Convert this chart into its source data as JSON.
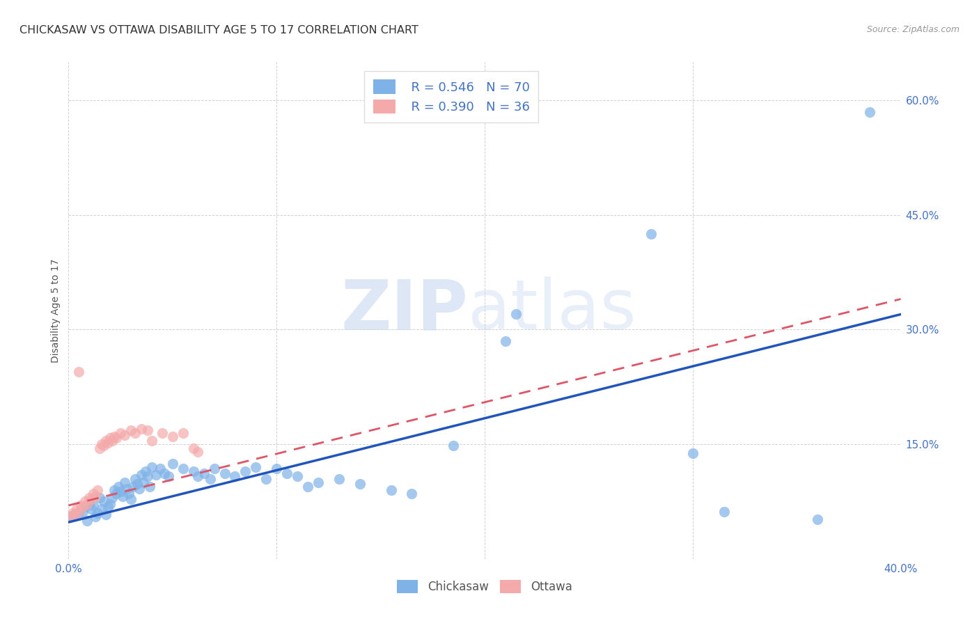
{
  "title": "CHICKASAW VS OTTAWA DISABILITY AGE 5 TO 17 CORRELATION CHART",
  "source": "Source: ZipAtlas.com",
  "ylabel": "Disability Age 5 to 17",
  "xlim": [
    0.0,
    0.4
  ],
  "ylim": [
    0.0,
    0.65
  ],
  "xticks": [
    0.0,
    0.1,
    0.2,
    0.3,
    0.4
  ],
  "xticklabels": [
    "0.0%",
    "",
    "",
    "",
    "40.0%"
  ],
  "yticks": [
    0.0,
    0.15,
    0.3,
    0.45,
    0.6
  ],
  "yticklabels": [
    "",
    "15.0%",
    "30.0%",
    "45.0%",
    "60.0%"
  ],
  "grid_color": "#cccccc",
  "background_color": "#ffffff",
  "chickasaw_color": "#7fb3e8",
  "ottawa_color": "#f4aaaa",
  "trendline_chickasaw_color": "#2255bb",
  "trendline_ottawa_color": "#dd5566",
  "legend_chickasaw_r": "R = 0.546",
  "legend_chickasaw_n": "N = 70",
  "legend_ottawa_r": "R = 0.390",
  "legend_ottawa_n": "N = 36",
  "watermark_zip": "ZIP",
  "watermark_atlas": "atlas",
  "chickasaw_trendline": [
    0.0,
    0.048,
    0.4,
    0.32
  ],
  "ottawa_trendline": [
    0.0,
    0.07,
    0.4,
    0.34
  ],
  "chickasaw_points": [
    [
      0.001,
      0.055
    ],
    [
      0.003,
      0.058
    ],
    [
      0.005,
      0.06
    ],
    [
      0.007,
      0.062
    ],
    [
      0.008,
      0.068
    ],
    [
      0.009,
      0.05
    ],
    [
      0.01,
      0.072
    ],
    [
      0.011,
      0.065
    ],
    [
      0.012,
      0.07
    ],
    [
      0.013,
      0.055
    ],
    [
      0.014,
      0.06
    ],
    [
      0.015,
      0.08
    ],
    [
      0.016,
      0.065
    ],
    [
      0.017,
      0.075
    ],
    [
      0.018,
      0.058
    ],
    [
      0.019,
      0.068
    ],
    [
      0.02,
      0.072
    ],
    [
      0.021,
      0.08
    ],
    [
      0.022,
      0.09
    ],
    [
      0.023,
      0.085
    ],
    [
      0.024,
      0.095
    ],
    [
      0.025,
      0.088
    ],
    [
      0.026,
      0.082
    ],
    [
      0.027,
      0.1
    ],
    [
      0.028,
      0.092
    ],
    [
      0.029,
      0.085
    ],
    [
      0.03,
      0.078
    ],
    [
      0.031,
      0.095
    ],
    [
      0.032,
      0.105
    ],
    [
      0.033,
      0.098
    ],
    [
      0.034,
      0.092
    ],
    [
      0.035,
      0.11
    ],
    [
      0.036,
      0.1
    ],
    [
      0.037,
      0.115
    ],
    [
      0.038,
      0.108
    ],
    [
      0.039,
      0.095
    ],
    [
      0.04,
      0.12
    ],
    [
      0.042,
      0.11
    ],
    [
      0.044,
      0.118
    ],
    [
      0.046,
      0.112
    ],
    [
      0.048,
      0.108
    ],
    [
      0.05,
      0.125
    ],
    [
      0.055,
      0.118
    ],
    [
      0.06,
      0.115
    ],
    [
      0.062,
      0.108
    ],
    [
      0.065,
      0.112
    ],
    [
      0.068,
      0.105
    ],
    [
      0.07,
      0.118
    ],
    [
      0.075,
      0.112
    ],
    [
      0.08,
      0.108
    ],
    [
      0.085,
      0.115
    ],
    [
      0.09,
      0.12
    ],
    [
      0.095,
      0.105
    ],
    [
      0.1,
      0.118
    ],
    [
      0.105,
      0.112
    ],
    [
      0.11,
      0.108
    ],
    [
      0.115,
      0.095
    ],
    [
      0.12,
      0.1
    ],
    [
      0.13,
      0.105
    ],
    [
      0.14,
      0.098
    ],
    [
      0.155,
      0.09
    ],
    [
      0.165,
      0.085
    ],
    [
      0.185,
      0.148
    ],
    [
      0.21,
      0.285
    ],
    [
      0.215,
      0.32
    ],
    [
      0.28,
      0.425
    ],
    [
      0.3,
      0.138
    ],
    [
      0.315,
      0.062
    ],
    [
      0.36,
      0.052
    ],
    [
      0.385,
      0.585
    ]
  ],
  "ottawa_points": [
    [
      0.001,
      0.055
    ],
    [
      0.002,
      0.06
    ],
    [
      0.003,
      0.058
    ],
    [
      0.004,
      0.065
    ],
    [
      0.005,
      0.062
    ],
    [
      0.006,
      0.07
    ],
    [
      0.007,
      0.068
    ],
    [
      0.008,
      0.075
    ],
    [
      0.009,
      0.072
    ],
    [
      0.01,
      0.08
    ],
    [
      0.011,
      0.078
    ],
    [
      0.012,
      0.085
    ],
    [
      0.013,
      0.082
    ],
    [
      0.014,
      0.09
    ],
    [
      0.015,
      0.145
    ],
    [
      0.016,
      0.15
    ],
    [
      0.017,
      0.148
    ],
    [
      0.018,
      0.155
    ],
    [
      0.019,
      0.152
    ],
    [
      0.02,
      0.158
    ],
    [
      0.021,
      0.155
    ],
    [
      0.022,
      0.16
    ],
    [
      0.023,
      0.158
    ],
    [
      0.025,
      0.165
    ],
    [
      0.027,
      0.162
    ],
    [
      0.03,
      0.168
    ],
    [
      0.032,
      0.165
    ],
    [
      0.035,
      0.17
    ],
    [
      0.038,
      0.168
    ],
    [
      0.04,
      0.155
    ],
    [
      0.045,
      0.165
    ],
    [
      0.05,
      0.16
    ],
    [
      0.055,
      0.165
    ],
    [
      0.06,
      0.145
    ],
    [
      0.005,
      0.245
    ],
    [
      0.062,
      0.14
    ]
  ]
}
